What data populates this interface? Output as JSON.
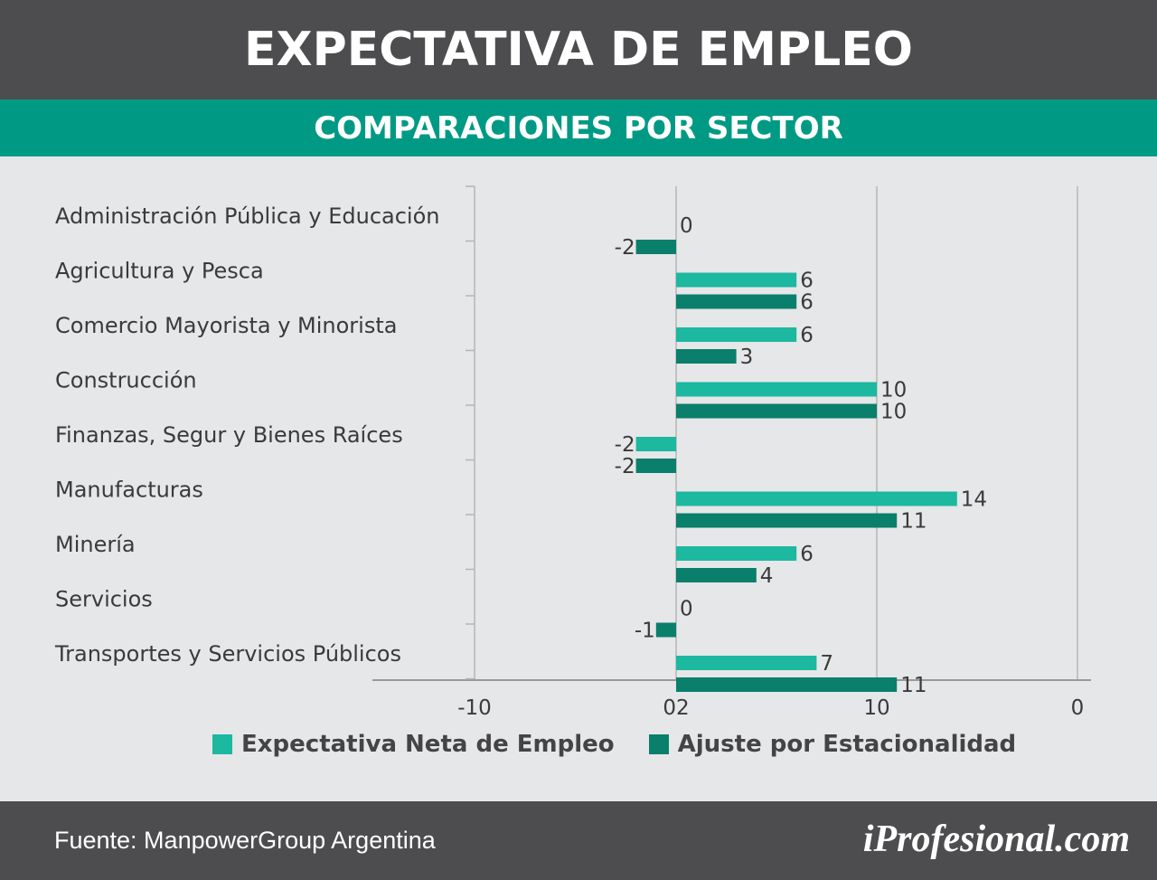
{
  "header": {
    "title": "EXPECTATIVA DE EMPLEO",
    "subtitle": "COMPARACIONES POR SECTOR"
  },
  "colors": {
    "series_net": "#1cb8a0",
    "series_adj": "#0a7f6b",
    "band_dark": "#4d4d4f",
    "band_green": "#009a84"
  },
  "chart_data": {
    "type": "bar",
    "orientation": "horizontal",
    "categories": [
      "Administración Pública y Educación",
      "Agricultura y Pesca",
      "Comercio Mayorista y Minorista",
      "Construcción",
      "Finanzas, Segur y Bienes Raíces",
      "Manufacturas",
      "Minería",
      "Servicios",
      "Transportes y Servicios Públicos"
    ],
    "series": [
      {
        "name": "Expectativa Neta de Empleo",
        "values": [
          0,
          6,
          6,
          10,
          -2,
          14,
          6,
          0,
          7
        ]
      },
      {
        "name": "Ajuste por Estacionalidad",
        "values": [
          -2,
          6,
          3,
          10,
          -2,
          11,
          4,
          -1,
          11
        ]
      }
    ],
    "xlim": [
      -10,
      20
    ],
    "tick_labels": [
      "-10",
      "02",
      "10",
      "0"
    ],
    "grid": true,
    "legend_position": "bottom"
  },
  "footer": {
    "source": "Fuente: ManpowerGroup Argentina",
    "brand": "iProfesional.com"
  }
}
